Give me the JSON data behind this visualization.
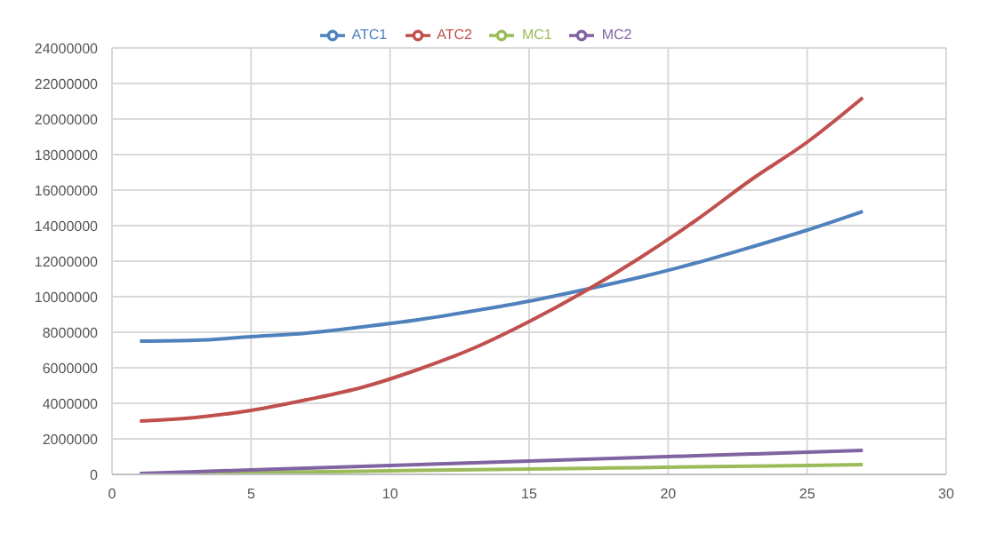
{
  "chart_data": {
    "type": "line",
    "x": [
      1,
      3,
      5,
      7,
      9,
      11,
      13,
      15,
      17,
      19,
      21,
      23,
      25,
      27
    ],
    "series": [
      {
        "name": "ATC1",
        "color": "#4f81bd",
        "values": [
          7500000,
          7550000,
          7750000,
          7950000,
          8300000,
          8700000,
          9200000,
          9750000,
          10400000,
          11100000,
          11900000,
          12800000,
          13750000,
          14800000
        ]
      },
      {
        "name": "ATC2",
        "color": "#c0504d",
        "values": [
          3000000,
          3200000,
          3600000,
          4200000,
          4900000,
          5900000,
          7100000,
          8600000,
          10300000,
          12200000,
          14300000,
          16600000,
          18700000,
          21200000
        ]
      },
      {
        "name": "MC1",
        "color": "#9bbb59",
        "values": [
          20000,
          60000,
          100000,
          140000,
          180000,
          220000,
          260000,
          300000,
          340000,
          380000,
          420000,
          460000,
          500000,
          550000
        ]
      },
      {
        "name": "MC2",
        "color": "#8064a2",
        "values": [
          50000,
          150000,
          250000,
          350000,
          450000,
          550000,
          650000,
          750000,
          850000,
          950000,
          1050000,
          1150000,
          1250000,
          1350000
        ]
      }
    ],
    "xlim": [
      0,
      30
    ],
    "xticks": [
      0,
      5,
      10,
      15,
      20,
      25,
      30
    ],
    "ylim": [
      0,
      24000000
    ],
    "yticks": [
      0,
      2000000,
      4000000,
      6000000,
      8000000,
      10000000,
      12000000,
      14000000,
      16000000,
      18000000,
      20000000,
      22000000,
      24000000
    ],
    "grid": true,
    "legend": "top",
    "marker": "none",
    "line_style": "solid"
  }
}
